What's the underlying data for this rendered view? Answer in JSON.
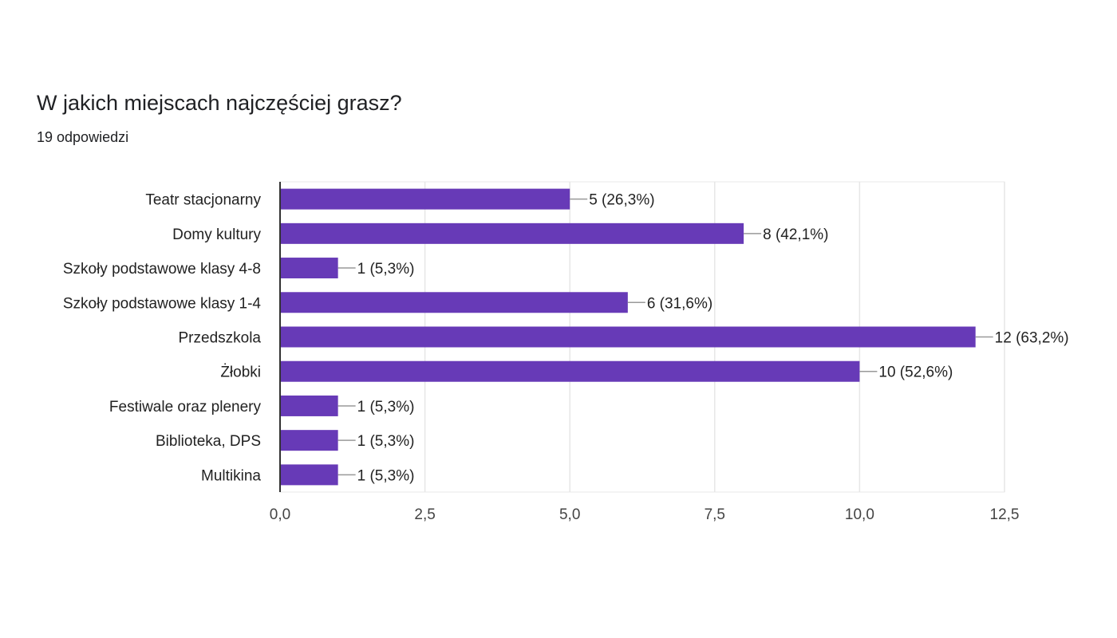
{
  "chart_data": {
    "type": "bar",
    "orientation": "horizontal",
    "title": "W jakich miejscach najczęściej grasz?",
    "subtitle": "19 odpowiedzi",
    "categories": [
      "Teatr stacjonarny",
      "Domy kultury",
      "Szkoły podstawowe klasy 4-8",
      "Szkoły podstawowe klasy 1-4",
      "Przedszkola",
      "Żłobki",
      "Festiwale oraz plenery",
      "Biblioteka, DPS",
      "Multikina"
    ],
    "values": [
      5,
      8,
      1,
      6,
      12,
      10,
      1,
      1,
      1
    ],
    "data_labels": [
      "5 (26,3%)",
      "8 (42,1%)",
      "1 (5,3%)",
      "6 (31,6%)",
      "12 (63,2%)",
      "10 (52,6%)",
      "1 (5,3%)",
      "1 (5,3%)",
      "1 (5,3%)"
    ],
    "xlim": [
      0,
      12.5
    ],
    "xticks": [
      0,
      2.5,
      5,
      7.5,
      10,
      12.5
    ],
    "xtick_labels": [
      "0,0",
      "2,5",
      "5,0",
      "7,5",
      "10,0",
      "12,5"
    ],
    "grid": true,
    "bar_color": "#673ab7",
    "xlabel": "",
    "ylabel": ""
  }
}
